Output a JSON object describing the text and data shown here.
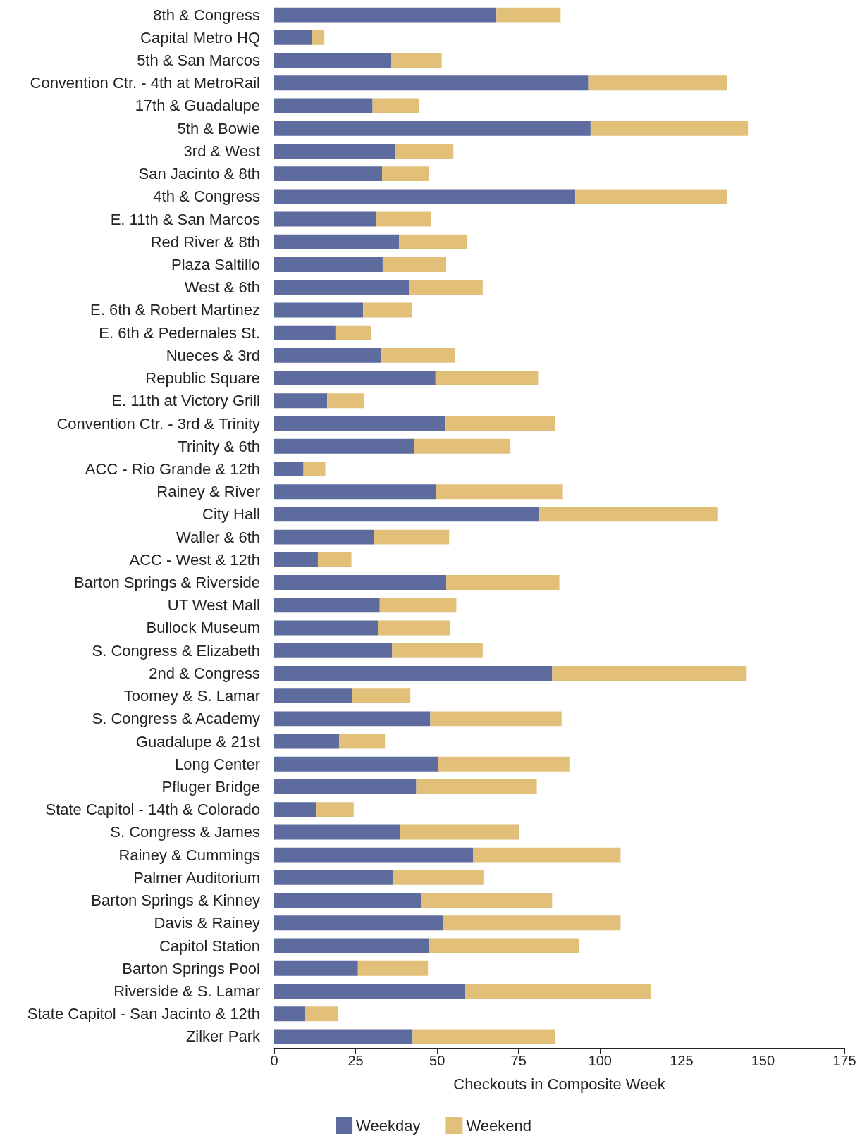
{
  "chart_data": {
    "type": "bar",
    "orientation": "horizontal",
    "stacked": true,
    "xlabel": "Checkouts in Composite Week",
    "categories": [
      "8th & Congress",
      "Capital Metro HQ",
      "5th & San Marcos",
      "Convention Ctr. - 4th at MetroRail",
      "17th & Guadalupe",
      "5th & Bowie",
      "3rd & West",
      "San Jacinto & 8th",
      "4th & Congress",
      "E. 11th & San Marcos",
      "Red River & 8th",
      "Plaza Saltillo",
      "West & 6th",
      "E. 6th & Robert Martinez",
      "E. 6th & Pedernales St.",
      "Nueces & 3rd",
      "Republic Square",
      "E. 11th at Victory Grill",
      "Convention Ctr. - 3rd & Trinity",
      "Trinity & 6th",
      "ACC - Rio Grande & 12th",
      "Rainey & River",
      "City Hall",
      "Waller & 6th",
      "ACC - West & 12th",
      "Barton Springs & Riverside",
      "UT West Mall",
      "Bullock Museum",
      "S. Congress & Elizabeth",
      "2nd & Congress",
      "Toomey & S. Lamar",
      "S. Congress & Academy",
      "Guadalupe & 21st",
      "Long Center",
      "Pfluger Bridge",
      "State Capitol - 14th & Colorado",
      "S. Congress & James",
      "Rainey & Cummings",
      "Palmer Auditorium",
      "Barton Springs & Kinney",
      "Davis & Rainey",
      "Capitol Station",
      "Barton Springs Pool",
      "Riverside & S. Lamar",
      "State Capitol - San Jacinto & 12th",
      "Zilker Park"
    ],
    "series": [
      {
        "name": "Weekday",
        "color": "#5e6b9e",
        "values": [
          68.2,
          11.6,
          36.0,
          96.4,
          30.2,
          97.1,
          37.1,
          33.1,
          92.4,
          31.3,
          38.3,
          33.3,
          41.4,
          27.3,
          18.8,
          32.9,
          49.5,
          16.3,
          52.6,
          43.0,
          9.0,
          49.7,
          81.4,
          30.7,
          13.4,
          52.8,
          32.4,
          31.8,
          36.2,
          85.3,
          23.9,
          47.9,
          19.9,
          50.3,
          43.6,
          13.0,
          38.7,
          61.1,
          36.5,
          45.0,
          51.7,
          47.4,
          25.7,
          58.6,
          9.4,
          42.5
        ]
      },
      {
        "name": "Weekend",
        "color": "#e2c07a",
        "values": [
          19.7,
          3.8,
          15.4,
          42.5,
          14.3,
          48.3,
          17.9,
          14.3,
          46.5,
          16.8,
          20.8,
          19.5,
          22.6,
          15.0,
          11.0,
          22.6,
          31.5,
          11.2,
          33.5,
          29.5,
          6.7,
          38.9,
          54.6,
          23.0,
          10.3,
          34.7,
          23.5,
          22.1,
          27.8,
          59.7,
          17.9,
          40.3,
          14.1,
          40.3,
          37.0,
          11.4,
          36.5,
          45.2,
          27.7,
          40.3,
          54.6,
          46.1,
          21.5,
          56.9,
          10.1,
          43.6
        ]
      }
    ],
    "xlim": [
      0,
      175
    ],
    "xticks": [
      0,
      25,
      50,
      75,
      100,
      125,
      150,
      175
    ],
    "grid": false,
    "legend": "bottom"
  }
}
